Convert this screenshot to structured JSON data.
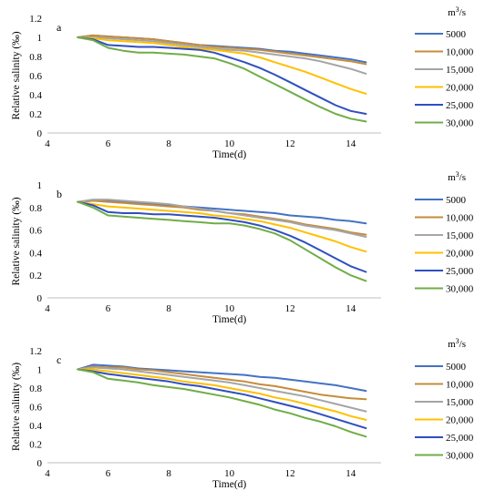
{
  "chart_data": [
    {
      "type": "line",
      "panel_label": "a",
      "xlabel": "Time(d)",
      "ylabel": "Relative salinity (‰)",
      "xlim": [
        4,
        15
      ],
      "ylim": [
        0,
        1.2
      ],
      "xticks": [
        "4",
        "6",
        "8",
        "10",
        "12",
        "14"
      ],
      "yticks": [
        "0",
        "0.2",
        "0.4",
        "0.6",
        "0.8",
        "1",
        "1.2"
      ],
      "legend_unit": "m3/s",
      "x": [
        5,
        5.5,
        6,
        6.5,
        7,
        7.5,
        8,
        8.5,
        9,
        9.5,
        10,
        10.5,
        11,
        11.5,
        12,
        12.5,
        13,
        13.5,
        14,
        14.5
      ],
      "series": [
        {
          "name": "5000",
          "color": "#4472C4",
          "values": [
            1.0,
            1.02,
            1.01,
            1.0,
            0.99,
            0.98,
            0.96,
            0.94,
            0.92,
            0.91,
            0.9,
            0.89,
            0.88,
            0.86,
            0.85,
            0.83,
            0.81,
            0.79,
            0.77,
            0.74
          ]
        },
        {
          "name": "10,000",
          "color": "#C58C3C",
          "values": [
            1.0,
            1.02,
            1.01,
            1.0,
            0.99,
            0.98,
            0.96,
            0.94,
            0.92,
            0.9,
            0.89,
            0.88,
            0.87,
            0.85,
            0.83,
            0.81,
            0.79,
            0.77,
            0.75,
            0.72
          ]
        },
        {
          "name": "15,000",
          "color": "#A5A5A5",
          "values": [
            1.0,
            1.0,
            0.99,
            0.98,
            0.97,
            0.96,
            0.94,
            0.92,
            0.9,
            0.88,
            0.87,
            0.86,
            0.84,
            0.82,
            0.8,
            0.78,
            0.75,
            0.71,
            0.67,
            0.62
          ]
        },
        {
          "name": "20,000",
          "color": "#FFC000",
          "values": [
            1.0,
            0.99,
            0.97,
            0.96,
            0.95,
            0.94,
            0.92,
            0.9,
            0.88,
            0.87,
            0.85,
            0.83,
            0.79,
            0.74,
            0.69,
            0.64,
            0.58,
            0.52,
            0.46,
            0.41
          ]
        },
        {
          "name": "25,000",
          "color": "#2F4FBF",
          "values": [
            1.0,
            0.98,
            0.92,
            0.91,
            0.9,
            0.9,
            0.89,
            0.88,
            0.87,
            0.84,
            0.79,
            0.74,
            0.68,
            0.61,
            0.53,
            0.45,
            0.37,
            0.29,
            0.23,
            0.2
          ]
        },
        {
          "name": "30,000",
          "color": "#70AD47",
          "values": [
            1.0,
            0.97,
            0.89,
            0.86,
            0.84,
            0.84,
            0.83,
            0.82,
            0.8,
            0.78,
            0.73,
            0.67,
            0.59,
            0.51,
            0.43,
            0.35,
            0.27,
            0.2,
            0.15,
            0.12
          ]
        }
      ]
    },
    {
      "type": "line",
      "panel_label": "b",
      "xlabel": "Time(d)",
      "ylabel": "Relative salinity (‰)",
      "xlim": [
        4,
        15
      ],
      "ylim": [
        0,
        1
      ],
      "xticks": [
        "4",
        "6",
        "8",
        "10",
        "12",
        "14"
      ],
      "yticks": [
        "0",
        "0.2",
        "0.4",
        "0.6",
        "0.8",
        "1"
      ],
      "legend_unit": "m3/s",
      "x": [
        5,
        5.5,
        6,
        6.5,
        7,
        7.5,
        8,
        8.5,
        9,
        9.5,
        10,
        10.5,
        11,
        11.5,
        12,
        12.5,
        13,
        13.5,
        14,
        14.5
      ],
      "series": [
        {
          "name": "5000",
          "color": "#4472C4",
          "values": [
            0.85,
            0.86,
            0.86,
            0.85,
            0.84,
            0.83,
            0.82,
            0.81,
            0.8,
            0.79,
            0.78,
            0.77,
            0.76,
            0.75,
            0.73,
            0.72,
            0.71,
            0.69,
            0.68,
            0.66
          ]
        },
        {
          "name": "10,000",
          "color": "#C58C3C",
          "values": [
            0.85,
            0.86,
            0.85,
            0.84,
            0.83,
            0.82,
            0.81,
            0.8,
            0.78,
            0.77,
            0.75,
            0.74,
            0.72,
            0.7,
            0.68,
            0.65,
            0.63,
            0.61,
            0.58,
            0.56
          ]
        },
        {
          "name": "15,000",
          "color": "#A5A5A5",
          "values": [
            0.85,
            0.87,
            0.87,
            0.86,
            0.85,
            0.84,
            0.83,
            0.81,
            0.79,
            0.77,
            0.75,
            0.73,
            0.71,
            0.69,
            0.67,
            0.64,
            0.62,
            0.6,
            0.57,
            0.54
          ]
        },
        {
          "name": "20,000",
          "color": "#FFC000",
          "values": [
            0.85,
            0.83,
            0.81,
            0.8,
            0.79,
            0.78,
            0.77,
            0.76,
            0.75,
            0.73,
            0.72,
            0.7,
            0.68,
            0.65,
            0.62,
            0.58,
            0.54,
            0.5,
            0.45,
            0.41
          ]
        },
        {
          "name": "25,000",
          "color": "#2F4FBF",
          "values": [
            0.85,
            0.82,
            0.76,
            0.75,
            0.75,
            0.74,
            0.74,
            0.73,
            0.72,
            0.71,
            0.69,
            0.67,
            0.64,
            0.6,
            0.55,
            0.49,
            0.42,
            0.35,
            0.28,
            0.23
          ]
        },
        {
          "name": "30,000",
          "color": "#70AD47",
          "values": [
            0.85,
            0.8,
            0.73,
            0.72,
            0.71,
            0.7,
            0.69,
            0.68,
            0.67,
            0.66,
            0.66,
            0.64,
            0.61,
            0.57,
            0.51,
            0.43,
            0.35,
            0.27,
            0.2,
            0.15
          ]
        }
      ]
    },
    {
      "type": "line",
      "panel_label": "c",
      "xlabel": "Time(d)",
      "ylabel": "Relative salinity (‰)",
      "xlim": [
        4,
        15
      ],
      "ylim": [
        0,
        1.2
      ],
      "xticks": [
        "4",
        "6",
        "8",
        "10",
        "12",
        "14"
      ],
      "yticks": [
        "0",
        "0.2",
        "0.4",
        "0.6",
        "0.8",
        "1",
        "1.2"
      ],
      "legend_unit": "m3/s",
      "x": [
        5,
        5.5,
        6,
        6.5,
        7,
        7.5,
        8,
        8.5,
        9,
        9.5,
        10,
        10.5,
        11,
        11.5,
        12,
        12.5,
        13,
        13.5,
        14,
        14.5
      ],
      "series": [
        {
          "name": "5000",
          "color": "#4472C4",
          "values": [
            1.0,
            1.05,
            1.04,
            1.03,
            1.01,
            1.0,
            0.99,
            0.98,
            0.97,
            0.96,
            0.95,
            0.94,
            0.92,
            0.91,
            0.89,
            0.87,
            0.85,
            0.83,
            0.8,
            0.77
          ]
        },
        {
          "name": "10,000",
          "color": "#C58C3C",
          "values": [
            1.0,
            1.03,
            1.02,
            1.02,
            1.0,
            0.99,
            0.97,
            0.95,
            0.93,
            0.91,
            0.89,
            0.87,
            0.84,
            0.82,
            0.79,
            0.76,
            0.73,
            0.71,
            0.69,
            0.68
          ]
        },
        {
          "name": "15,000",
          "color": "#A5A5A5",
          "values": [
            1.0,
            1.02,
            1.01,
            1.0,
            0.98,
            0.96,
            0.94,
            0.92,
            0.9,
            0.88,
            0.86,
            0.83,
            0.8,
            0.77,
            0.74,
            0.71,
            0.67,
            0.63,
            0.59,
            0.55
          ]
        },
        {
          "name": "20,000",
          "color": "#FFC000",
          "values": [
            1.0,
            1.0,
            0.98,
            0.96,
            0.94,
            0.92,
            0.9,
            0.87,
            0.85,
            0.83,
            0.8,
            0.77,
            0.74,
            0.7,
            0.67,
            0.63,
            0.59,
            0.55,
            0.5,
            0.46
          ]
        },
        {
          "name": "25,000",
          "color": "#2F4FBF",
          "values": [
            1.0,
            0.98,
            0.95,
            0.93,
            0.91,
            0.89,
            0.87,
            0.84,
            0.82,
            0.79,
            0.76,
            0.73,
            0.69,
            0.65,
            0.61,
            0.57,
            0.52,
            0.47,
            0.42,
            0.37
          ]
        },
        {
          "name": "30,000",
          "color": "#70AD47",
          "values": [
            1.0,
            0.97,
            0.9,
            0.88,
            0.86,
            0.83,
            0.81,
            0.79,
            0.76,
            0.73,
            0.7,
            0.66,
            0.62,
            0.57,
            0.53,
            0.48,
            0.44,
            0.39,
            0.33,
            0.28
          ]
        }
      ]
    }
  ]
}
